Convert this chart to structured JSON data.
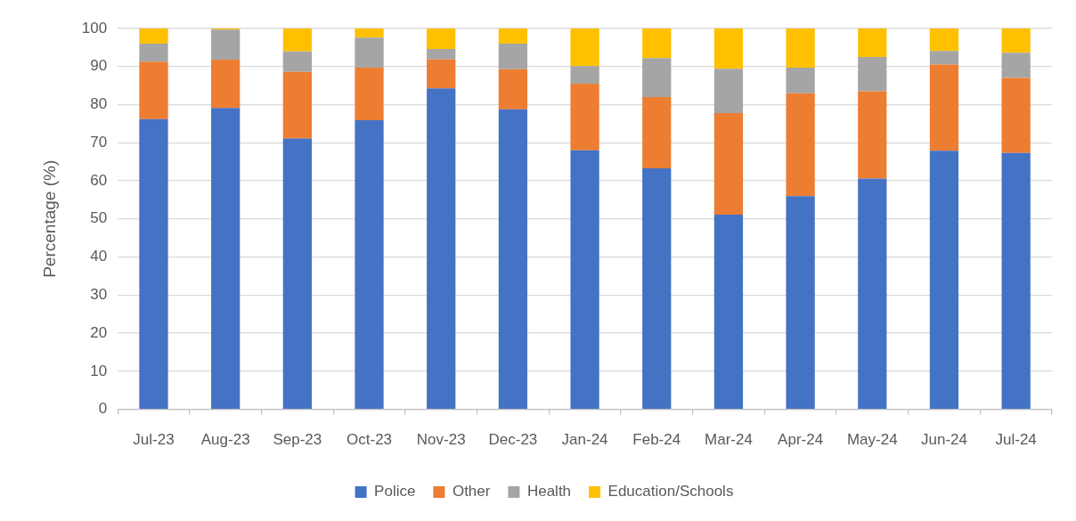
{
  "chart_data": {
    "type": "bar",
    "stacked": true,
    "ylabel": "Percentage (%)",
    "categories": [
      "Jul-23",
      "Aug-23",
      "Sep-23",
      "Oct-23",
      "Nov-23",
      "Dec-23",
      "Jan-24",
      "Feb-24",
      "Mar-24",
      "Apr-24",
      "May-24",
      "Jun-24",
      "Jul-24"
    ],
    "series": [
      {
        "name": "Police",
        "color": "#4472c4",
        "values": [
          76.2,
          79.1,
          71.1,
          75.9,
          84.3,
          78.8,
          68.0,
          63.3,
          51.1,
          56.0,
          60.6,
          67.9,
          67.3
        ]
      },
      {
        "name": "Other",
        "color": "#ed7d31",
        "values": [
          15.1,
          12.7,
          17.5,
          13.8,
          7.6,
          10.5,
          17.5,
          18.7,
          26.7,
          27.0,
          22.9,
          22.6,
          19.7
        ]
      },
      {
        "name": "Health",
        "color": "#a5a5a5",
        "values": [
          4.7,
          7.9,
          5.4,
          7.9,
          2.7,
          6.7,
          4.6,
          10.2,
          11.6,
          6.7,
          9.0,
          3.6,
          6.6
        ]
      },
      {
        "name": "Education/Schools",
        "color": "#ffc000",
        "values": [
          4.0,
          0.3,
          6.0,
          2.4,
          5.4,
          4.0,
          9.9,
          7.8,
          10.6,
          10.3,
          7.5,
          5.9,
          6.4
        ]
      }
    ],
    "ylim": [
      0,
      100
    ],
    "yticks": [
      0,
      10,
      20,
      30,
      40,
      50,
      60,
      70,
      80,
      90,
      100
    ],
    "grid": "y",
    "legend": "bottom"
  }
}
